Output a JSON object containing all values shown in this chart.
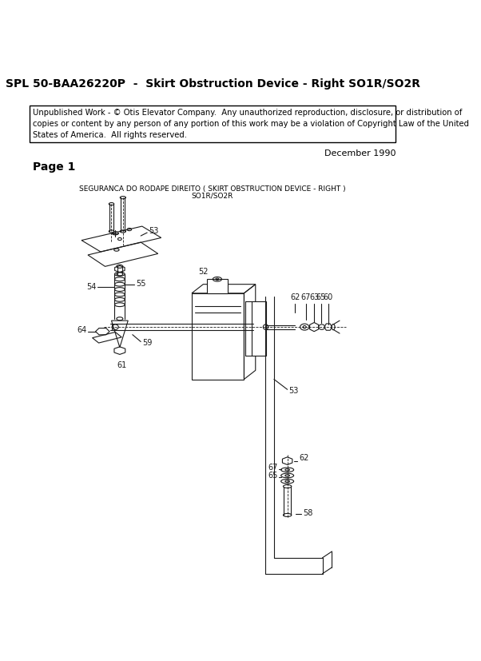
{
  "title": "SPL 50-BAA26220P  -  Skirt Obstruction Device - Right SO1R/SO2R",
  "copyright_text": "Unpublished Work - © Otis Elevator Company.  Any unauthorized reproduction, disclosure, or distribution of\ncopies or content by any person of any portion of this work may be a violation of Copyright Law of the United\nStates of America.  All rights reserved.",
  "date_text": "December 1990",
  "page_text": "Page 1",
  "diagram_title_line1": "SEGURANCA DO RODAPE DIREITO ( SKIRT OBSTRUCTION DEVICE - RIGHT )",
  "diagram_title_line2": "SO1R/SO2R",
  "background_color": "#ffffff",
  "border_color": "#000000",
  "text_color": "#000000"
}
